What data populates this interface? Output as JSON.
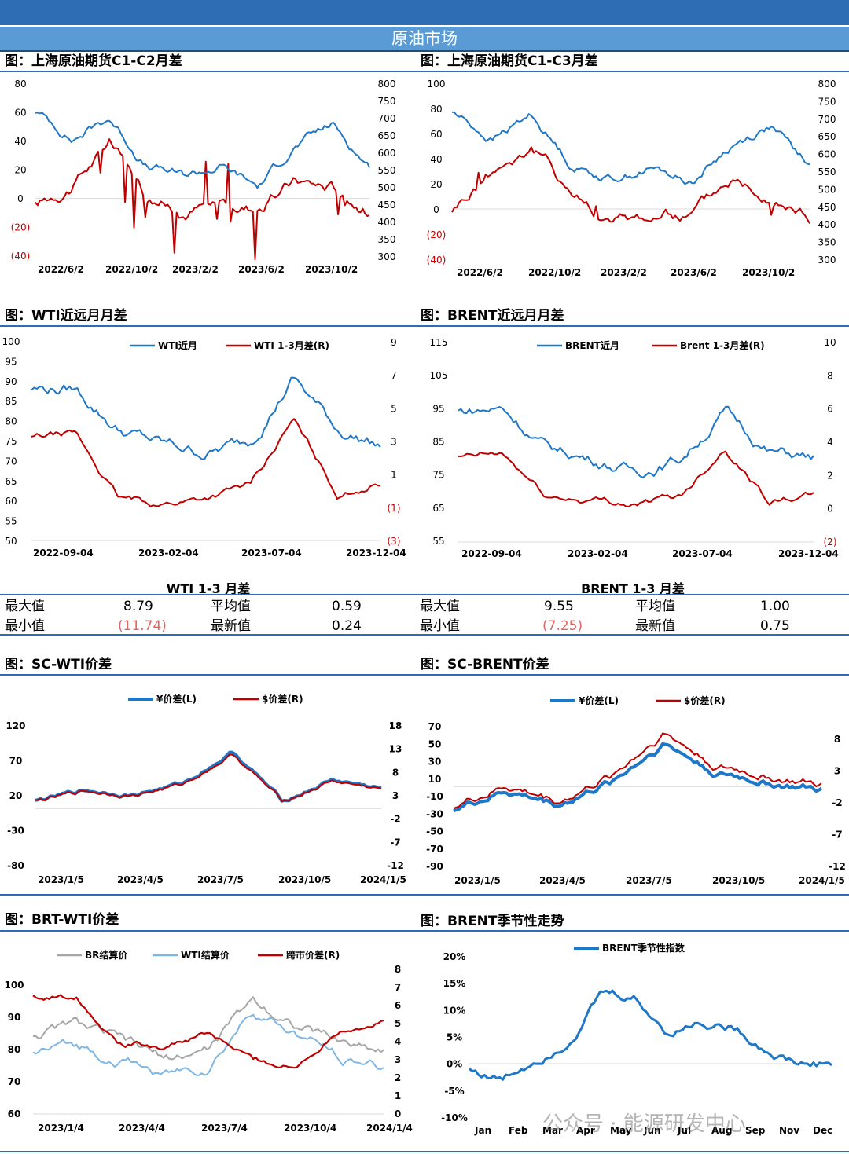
{
  "section_title": "原油市场",
  "watermark": "公众号 · 能源研发中心",
  "colors": {
    "blue": "#1f77c8",
    "red": "#c00000",
    "gray": "#a6a6a6",
    "lightblue": "#7fb6e4"
  },
  "charts": [
    {
      "id": "sc-c1c2",
      "title": "图：上海原油期货C1-C2月差",
      "legend": [],
      "left_ticks": [
        "80",
        "60",
        "40",
        "20",
        "0",
        "(20)",
        "(40)"
      ],
      "right_ticks": [
        "800",
        "750",
        "700",
        "650",
        "600",
        "550",
        "500",
        "450",
        "400",
        "350",
        "300"
      ],
      "x_ticks": [
        "2022/6/2",
        "2022/10/2",
        "2023/2/2",
        "2023/6/2",
        "2023/10/2"
      ]
    },
    {
      "id": "sc-c1c3",
      "title": "图：上海原油期货C1-C3月差",
      "legend": [],
      "left_ticks": [
        "100",
        "80",
        "60",
        "40",
        "20",
        "0",
        "(20)",
        "(40)"
      ],
      "right_ticks": [
        "800",
        "750",
        "700",
        "650",
        "600",
        "550",
        "500",
        "450",
        "400",
        "350",
        "300"
      ],
      "x_ticks": [
        "2022/6/2",
        "2022/10/2",
        "2023/2/2",
        "2023/6/2",
        "2023/10/2"
      ]
    },
    {
      "id": "wti-spread",
      "title": "图：WTI近远月月差",
      "legend": [
        "WTI近月",
        "WTI 1-3月差(R)"
      ],
      "left_ticks": [
        "100",
        "95",
        "90",
        "85",
        "80",
        "75",
        "70",
        "65",
        "60",
        "55",
        "50"
      ],
      "right_ticks": [
        "9",
        "7",
        "5",
        "3",
        "1",
        "(1)",
        "(3)"
      ],
      "x_ticks": [
        "2022-09-04",
        "2023-02-04",
        "2023-07-04",
        "2023-12-04"
      ]
    },
    {
      "id": "brent-spread",
      "title": "图：BRENT近远月月差",
      "legend": [
        "BRENT近月",
        "Brent 1-3月差(R)"
      ],
      "left_ticks": [
        "115",
        "105",
        "95",
        "85",
        "75",
        "65",
        "55"
      ],
      "right_ticks": [
        "10",
        "8",
        "6",
        "4",
        "2",
        "0",
        "(2)"
      ],
      "x_ticks": [
        "2022-09-04",
        "2023-02-04",
        "2023-07-04",
        "2023-12-04"
      ]
    },
    {
      "id": "sc-wti",
      "title": "图：SC-WTI价差",
      "legend": [
        "¥价差(L)",
        "$价差(R)"
      ],
      "left_ticks": [
        "120",
        "70",
        "20",
        "-30",
        "-80"
      ],
      "right_ticks": [
        "18",
        "13",
        "8",
        "3",
        "-2",
        "-7",
        "-12"
      ],
      "x_ticks": [
        "2023/1/5",
        "2023/4/5",
        "2023/7/5",
        "2023/10/5",
        "2024/1/5"
      ]
    },
    {
      "id": "sc-brent",
      "title": "图：SC-BRENT价差",
      "legend": [
        "¥价差(L)",
        "$价差(R)"
      ],
      "left_ticks": [
        "70",
        "50",
        "30",
        "10",
        "-10",
        "-30",
        "-50",
        "-70",
        "-90"
      ],
      "right_ticks": [
        "8",
        "3",
        "-2",
        "-7",
        "-12"
      ],
      "x_ticks": [
        "2023/1/5",
        "2023/4/5",
        "2023/7/5",
        "2023/10/5",
        "2024/1/5"
      ]
    },
    {
      "id": "brt-wti",
      "title": "图：BRT-WTI价差",
      "legend": [
        "BR结算价",
        "WTI结算价",
        "跨市价差(R)"
      ],
      "left_ticks": [
        "100",
        "90",
        "80",
        "70",
        "60"
      ],
      "right_ticks": [
        "8",
        "7",
        "6",
        "5",
        "4",
        "3",
        "2",
        "1",
        "0"
      ],
      "x_ticks": [
        "2023/1/4",
        "2023/4/4",
        "2023/7/4",
        "2023/10/4",
        "2024/1/4"
      ]
    },
    {
      "id": "brent-seasonal",
      "title": "图：BRENT季节性走势",
      "legend": [
        "BRENT季节性指数"
      ],
      "left_ticks": [
        "20%",
        "15%",
        "10%",
        "5%",
        "0%",
        "-5%",
        "-10%"
      ],
      "right_ticks": [],
      "x_ticks": [
        "Jan",
        "Feb",
        "Mar",
        "Apr",
        "May",
        "Jun",
        "Jul",
        "Aug",
        "Sep",
        "Nov",
        "Dec"
      ]
    }
  ],
  "stats": [
    {
      "header": "WTI 1-3 月差",
      "max_label": "最大值",
      "max": "8.79",
      "avg_label": "平均值",
      "avg": "0.59",
      "min_label": "最小值",
      "min": "(11.74)",
      "latest_label": "最新值",
      "latest": "0.24"
    },
    {
      "header": "BRENT 1-3 月差",
      "max_label": "最大值",
      "max": "9.55",
      "avg_label": "平均值",
      "avg": "1.00",
      "min_label": "最小值",
      "min": "(7.25)",
      "latest_label": "最新值",
      "latest": "0.75"
    }
  ],
  "chart_data": [
    {
      "type": "line",
      "title": "图：上海原油期货C1-C2月差",
      "x": [
        "2022/6/2",
        "2022/8/2",
        "2022/10/2",
        "2022/12/2",
        "2023/2/2",
        "2023/4/2",
        "2023/6/2",
        "2023/8/2",
        "2023/10/2",
        "2023/12/2"
      ],
      "series": [
        {
          "axis": "left",
          "values": [
            -5,
            10,
            38,
            2,
            -8,
            -2,
            -6,
            12,
            8,
            -8
          ]
        },
        {
          "axis": "right",
          "values": [
            720,
            640,
            700,
            560,
            530,
            560,
            500,
            620,
            680,
            560
          ]
        }
      ],
      "ylim": [
        -40,
        80
      ],
      "y2lim": [
        300,
        800
      ]
    },
    {
      "type": "line",
      "title": "图：上海原油期货C1-C3月差",
      "x": [
        "2022/6/2",
        "2022/8/2",
        "2022/10/2",
        "2022/12/2",
        "2023/2/2",
        "2023/4/2",
        "2023/6/2",
        "2023/8/2",
        "2023/10/2",
        "2023/12/2"
      ],
      "series": [
        {
          "axis": "left",
          "values": [
            0,
            30,
            50,
            15,
            -10,
            -5,
            -5,
            25,
            15,
            -5
          ]
        },
        {
          "axis": "right",
          "values": [
            720,
            640,
            710,
            570,
            530,
            560,
            520,
            620,
            680,
            560
          ]
        }
      ],
      "ylim": [
        -40,
        100
      ],
      "y2lim": [
        300,
        800
      ]
    },
    {
      "type": "line",
      "title": "图：WTI近远月月差",
      "x": [
        "2022-09-04",
        "2022-11-04",
        "2023-01-04",
        "2023-03-04",
        "2023-05-04",
        "2023-07-04",
        "2023-09-04",
        "2023-11-04",
        "2024-01-04"
      ],
      "series": [
        {
          "name": "WTI近月",
          "axis": "left",
          "values": [
            88,
            88,
            78,
            74,
            72,
            75,
            91,
            78,
            74
          ]
        },
        {
          "name": "WTI 1-3月差(R)",
          "axis": "right",
          "values": [
            3.2,
            3.4,
            -0.5,
            -0.8,
            -0.4,
            0.3,
            4.2,
            -0.2,
            0.5
          ]
        }
      ],
      "ylim": [
        50,
        100
      ],
      "y2lim": [
        -3,
        9
      ]
    },
    {
      "type": "line",
      "title": "图：BRENT近远月月差",
      "x": [
        "2022-09-04",
        "2022-11-04",
        "2023-01-04",
        "2023-03-04",
        "2023-05-04",
        "2023-07-04",
        "2023-09-04",
        "2023-11-04",
        "2024-01-04"
      ],
      "series": [
        {
          "name": "BRENT近月",
          "axis": "left",
          "values": [
            94,
            95,
            83,
            80,
            76,
            80,
            94,
            82,
            80
          ]
        },
        {
          "name": "Brent 1-3月差(R)",
          "axis": "right",
          "values": [
            3.0,
            3.2,
            0.7,
            0.5,
            0.3,
            0.7,
            3.7,
            0.5,
            0.8
          ]
        }
      ],
      "ylim": [
        55,
        115
      ],
      "y2lim": [
        -2,
        10
      ]
    },
    {
      "type": "line",
      "title": "图：SC-WTI价差",
      "x": [
        "2023/1/5",
        "2023/3/5",
        "2023/5/5",
        "2023/7/5",
        "2023/9/5",
        "2023/10/5",
        "2023/11/5",
        "2024/1/5"
      ],
      "series": [
        {
          "name": "¥价差(L)",
          "axis": "left",
          "values": [
            10,
            25,
            20,
            35,
            80,
            10,
            40,
            28
          ]
        },
        {
          "name": "$价差(R)",
          "axis": "right",
          "values": [
            1.5,
            3.5,
            2.8,
            5.0,
            11.5,
            1.5,
            5.5,
            4.0
          ]
        }
      ],
      "ylim": [
        -80,
        120
      ],
      "y2lim": [
        -12,
        18
      ]
    },
    {
      "type": "line",
      "title": "图：SC-BRENT价差",
      "x": [
        "2023/1/5",
        "2023/3/5",
        "2023/5/5",
        "2023/7/5",
        "2023/9/5",
        "2023/10/5",
        "2023/11/5",
        "2024/1/5"
      ],
      "series": [
        {
          "name": "¥价差(L)",
          "axis": "left",
          "values": [
            -25,
            -5,
            -20,
            5,
            50,
            15,
            5,
            -5
          ]
        },
        {
          "name": "$价差(R)",
          "axis": "right",
          "values": [
            -3.5,
            -0.7,
            -2.8,
            0.7,
            7.0,
            2.1,
            0.7,
            -0.7
          ]
        }
      ],
      "ylim": [
        -90,
        70
      ],
      "y2lim": [
        -12,
        8
      ]
    },
    {
      "type": "line",
      "title": "图：BRT-WTI价差",
      "x": [
        "2023/1/4",
        "2023/2/4",
        "2023/4/4",
        "2023/5/4",
        "2023/7/4",
        "2023/9/4",
        "2023/10/4",
        "2023/11/4",
        "2024/1/4"
      ],
      "series": [
        {
          "name": "BR结算价",
          "axis": "left",
          "values": [
            82,
            85,
            80,
            75,
            78,
            92,
            85,
            80,
            78
          ]
        },
        {
          "name": "WTI结算价",
          "axis": "left",
          "values": [
            77,
            79,
            75,
            71,
            73,
            89,
            82,
            76,
            73
          ]
        },
        {
          "name": "跨市价差(R)",
          "axis": "right",
          "values": [
            6.5,
            6.6,
            4.0,
            3.8,
            4.4,
            3.0,
            2.5,
            4.8,
            5.1
          ]
        }
      ],
      "ylim": [
        60,
        100
      ],
      "y2lim": [
        0,
        8
      ]
    },
    {
      "type": "line",
      "title": "图：BRENT季节性走势",
      "x": [
        "Jan",
        "Feb",
        "Mar",
        "Apr",
        "May",
        "Jun",
        "Jul",
        "Aug",
        "Sep",
        "Oct",
        "Nov",
        "Dec"
      ],
      "series": [
        {
          "name": "BRENT季节性指数",
          "axis": "left",
          "values": [
            -1,
            -3,
            1,
            5,
            13,
            12,
            6,
            8,
            7,
            3,
            0,
            0
          ]
        }
      ],
      "ylim": [
        -10,
        20
      ]
    }
  ]
}
